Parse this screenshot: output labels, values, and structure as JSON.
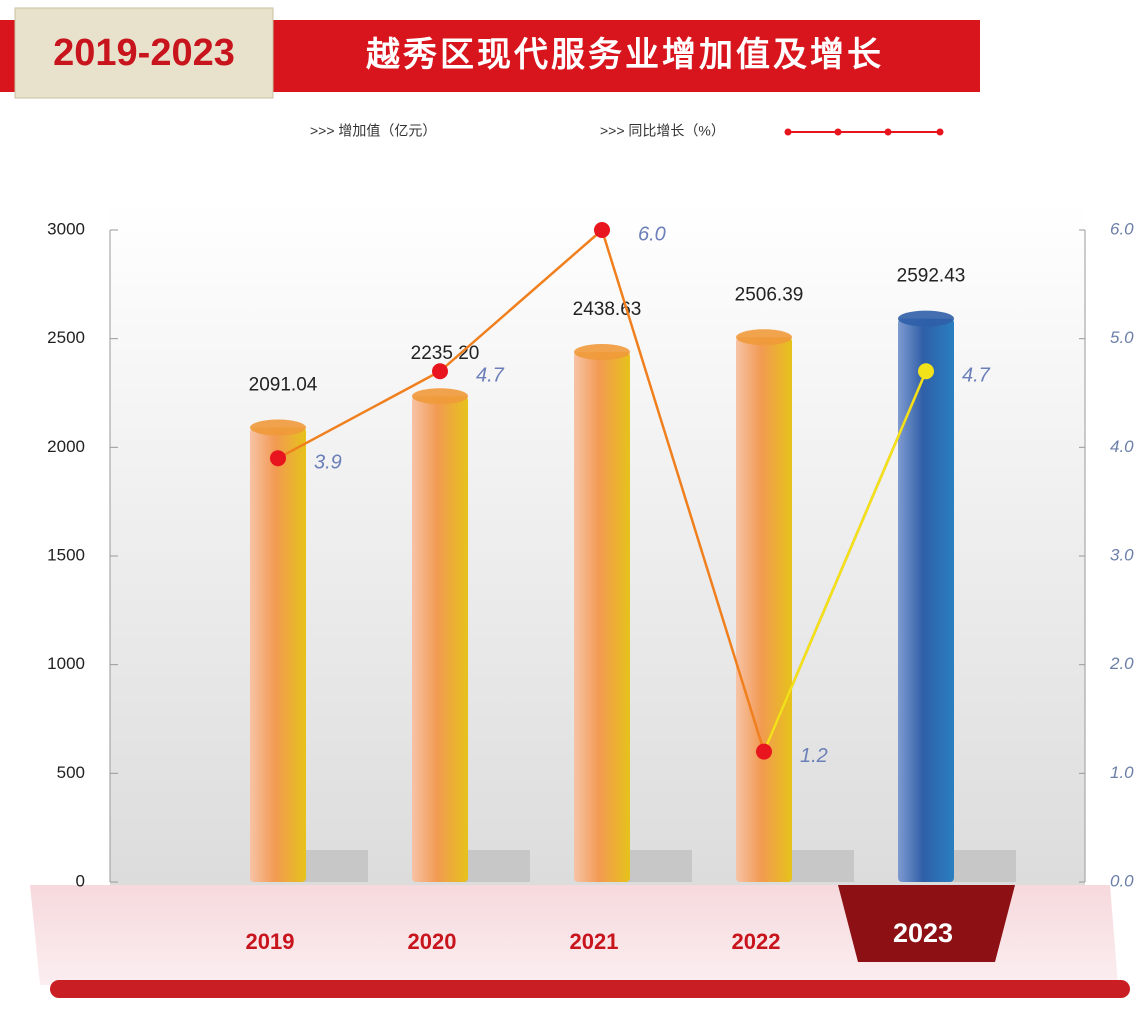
{
  "chart_data": {
    "type": "bar-line",
    "badge": "2019-2023",
    "title": "越秀区现代服务业增加值及增长",
    "categories": [
      "2019",
      "2020",
      "2021",
      "2022",
      "2023"
    ],
    "series": [
      {
        "name": ">>> 增加值（亿元）",
        "type": "bar",
        "color": "#f09a3a",
        "values": [
          2091.04,
          2235.2,
          2438.63,
          2506.39,
          2592.43
        ],
        "value_labels": [
          "2091.04",
          "2235.20",
          "2438.63",
          "2506.39",
          "2592.43"
        ]
      },
      {
        "name": ">>> 同比增长（%）",
        "type": "line",
        "axis": "y2",
        "color": "#f07f1e",
        "marker_color": "#e8141e",
        "values": [
          3.9,
          4.7,
          6.0,
          1.2,
          4.7
        ],
        "value_labels": [
          "3.9",
          "4.7",
          "6.0",
          "1.2",
          "4.7"
        ]
      }
    ],
    "highlight": {
      "category": "2023",
      "bar_color": "#2f5fa8",
      "line_color": "#f2e21a"
    },
    "ylim": [
      0,
      3000
    ],
    "yticks": [
      0,
      500,
      1000,
      1500,
      2000,
      2500,
      3000
    ],
    "y2lim": [
      0,
      6
    ],
    "y2ticks": [
      {
        "value": 0,
        "label": "0.0"
      },
      {
        "value": 1,
        "label": "1.0"
      },
      {
        "value": 2,
        "label": "2.0"
      },
      {
        "value": 3,
        "label": "3.0"
      },
      {
        "value": 4,
        "label": "4.0"
      },
      {
        "value": 5,
        "label": "5.0"
      },
      {
        "value": 6,
        "label": "6.0"
      }
    ],
    "grid": false
  }
}
